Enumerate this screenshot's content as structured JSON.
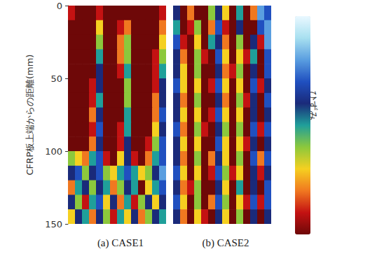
{
  "chart_data": [
    {
      "type": "heatmap",
      "title": "(a) CASE1",
      "ylabel": "CFRP板上端からの距離(mm)",
      "ylim": [
        0,
        150
      ],
      "yticks": [
        0,
        50,
        100,
        150
      ],
      "cells": [
        [
          1,
          0,
          0,
          0,
          1,
          0,
          0,
          0,
          0,
          0,
          0,
          0,
          0,
          1
        ],
        [
          0,
          0,
          0,
          0,
          3,
          0,
          0,
          1,
          2,
          0,
          0,
          0,
          0,
          2
        ],
        [
          0,
          0,
          0,
          0,
          4,
          0,
          0,
          2,
          4,
          0,
          0,
          0,
          0,
          3
        ],
        [
          0,
          0,
          0,
          0,
          5,
          0,
          0,
          2,
          4,
          0,
          0,
          0,
          1,
          4
        ],
        [
          0,
          0,
          0,
          0,
          6,
          0,
          0,
          1,
          5,
          0,
          0,
          0,
          1,
          5
        ],
        [
          0,
          0,
          0,
          1,
          6,
          0,
          0,
          0,
          4,
          0,
          0,
          0,
          1,
          6
        ],
        [
          0,
          0,
          0,
          1,
          5,
          0,
          0,
          0,
          4,
          0,
          0,
          0,
          2,
          6
        ],
        [
          0,
          0,
          0,
          2,
          6,
          0,
          0,
          0,
          5,
          0,
          0,
          0,
          2,
          7
        ],
        [
          0,
          0,
          0,
          1,
          7,
          0,
          0,
          1,
          5,
          0,
          0,
          0,
          3,
          6
        ],
        [
          0,
          0,
          0,
          2,
          6,
          0,
          0,
          1,
          6,
          0,
          0,
          1,
          4,
          7
        ],
        [
          4,
          3,
          2,
          5,
          7,
          1,
          0,
          3,
          6,
          1,
          0,
          2,
          5,
          7
        ],
        [
          6,
          7,
          4,
          6,
          7,
          4,
          3,
          5,
          7,
          5,
          3,
          4,
          6,
          8
        ],
        [
          2,
          5,
          6,
          4,
          6,
          5,
          2,
          4,
          6,
          5,
          0,
          3,
          5,
          7
        ],
        [
          6,
          4,
          1,
          5,
          7,
          3,
          6,
          2,
          5,
          1,
          4,
          6,
          3,
          6
        ],
        [
          3,
          6,
          5,
          2,
          6,
          4,
          1,
          5,
          3,
          6,
          2,
          4,
          6,
          5
        ]
      ]
    },
    {
      "type": "heatmap",
      "title": "(b) CASE2",
      "ylim": [
        0,
        150
      ],
      "tick_labels": false,
      "colorbar": {
        "label": "ひずみ",
        "range": [
          0,
          10
        ]
      },
      "cells": [
        [
          6,
          0,
          2,
          0,
          0,
          4,
          6,
          3,
          0,
          5,
          0,
          2,
          8,
          7
        ],
        [
          5,
          0,
          1,
          4,
          0,
          2,
          7,
          1,
          0,
          6,
          0,
          0,
          7,
          8
        ],
        [
          7,
          1,
          0,
          3,
          0,
          5,
          6,
          2,
          0,
          4,
          0,
          6,
          1,
          8
        ],
        [
          6,
          2,
          0,
          4,
          1,
          0,
          7,
          3,
          0,
          3,
          1,
          5,
          0,
          7
        ],
        [
          6,
          3,
          0,
          4,
          0,
          0,
          6,
          2,
          1,
          4,
          0,
          6,
          0,
          7
        ],
        [
          7,
          3,
          0,
          3,
          0,
          1,
          7,
          3,
          0,
          3,
          0,
          7,
          1,
          6
        ],
        [
          6,
          2,
          0,
          4,
          0,
          0,
          6,
          2,
          0,
          4,
          1,
          6,
          0,
          7
        ],
        [
          6,
          3,
          0,
          3,
          0,
          1,
          7,
          3,
          0,
          3,
          0,
          6,
          0,
          6
        ],
        [
          7,
          2,
          0,
          4,
          1,
          0,
          6,
          4,
          0,
          4,
          0,
          7,
          1,
          7
        ],
        [
          6,
          3,
          0,
          3,
          0,
          0,
          7,
          3,
          0,
          3,
          1,
          6,
          0,
          6
        ],
        [
          6,
          2,
          0,
          4,
          0,
          2,
          6,
          3,
          0,
          4,
          0,
          7,
          2,
          7
        ],
        [
          7,
          3,
          0,
          3,
          0,
          1,
          7,
          4,
          1,
          3,
          0,
          6,
          1,
          6
        ],
        [
          6,
          2,
          1,
          4,
          0,
          0,
          6,
          3,
          0,
          5,
          0,
          6,
          0,
          7
        ],
        [
          7,
          3,
          0,
          4,
          0,
          2,
          7,
          4,
          0,
          3,
          1,
          7,
          1,
          7
        ],
        [
          6,
          2,
          0,
          3,
          1,
          0,
          6,
          3,
          0,
          4,
          0,
          6,
          0,
          6
        ]
      ]
    }
  ]
}
